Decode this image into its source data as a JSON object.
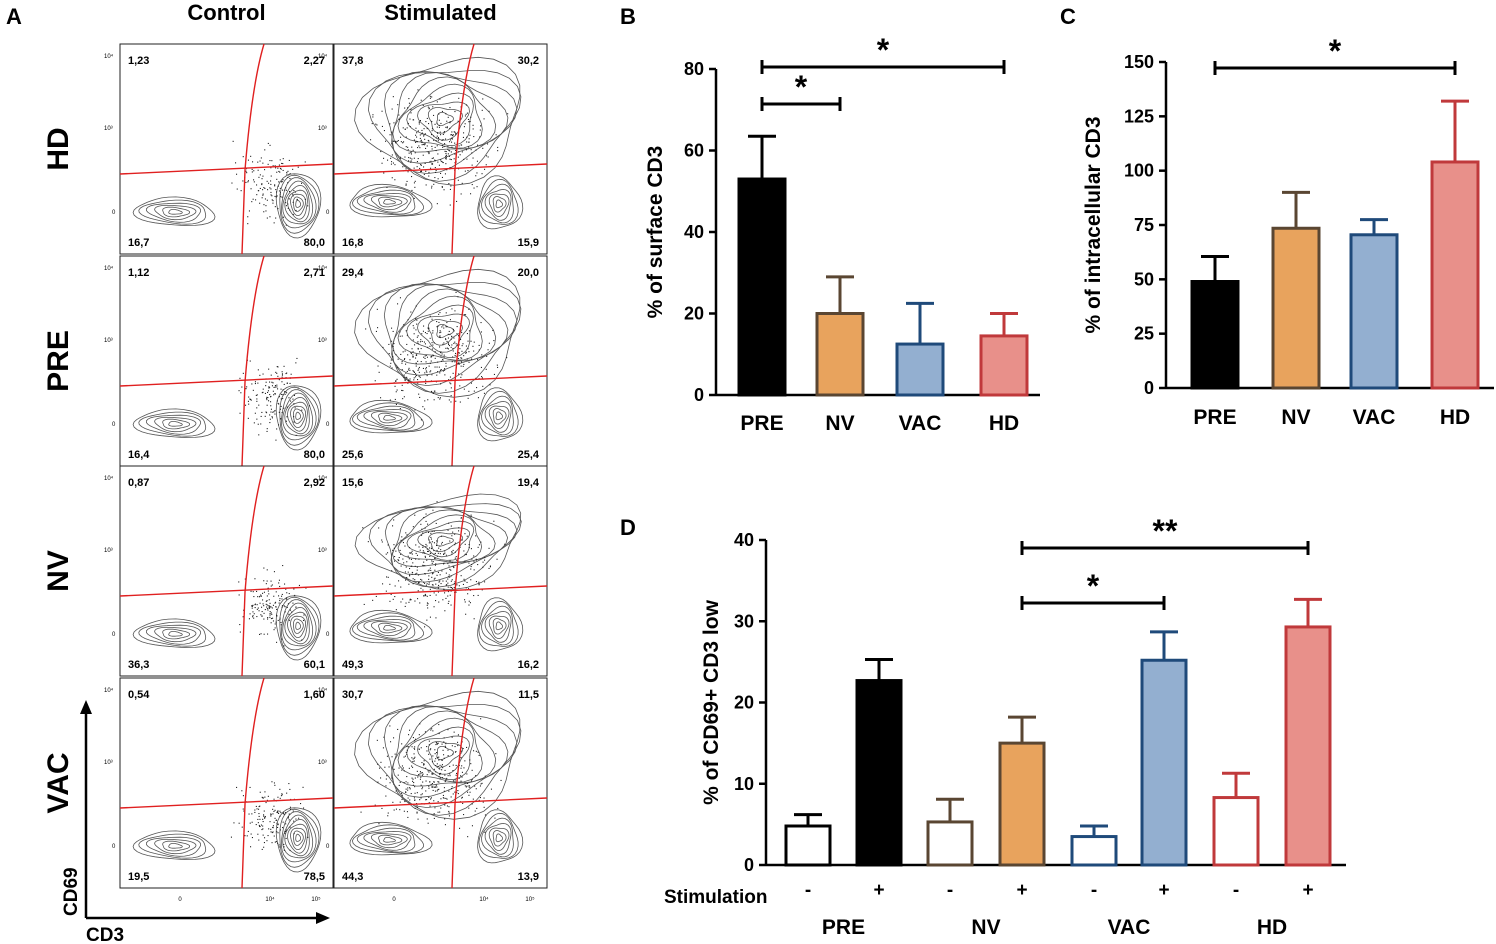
{
  "panels": {
    "A": "A",
    "B": "B",
    "C": "C",
    "D": "D"
  },
  "flow": {
    "columns": [
      "Control",
      "Stimulated"
    ],
    "rows": [
      {
        "label": "HD",
        "control": {
          "ul": "1,23",
          "ur": "2,27",
          "ll": "16,7",
          "lr": "80,0"
        },
        "stimulated": {
          "ul": "37,8",
          "ur": "30,2",
          "ll": "16,8",
          "lr": "15,9"
        }
      },
      {
        "label": "PRE",
        "control": {
          "ul": "1,12",
          "ur": "2,71",
          "ll": "16,4",
          "lr": "80,0"
        },
        "stimulated": {
          "ul": "29,4",
          "ur": "20,0",
          "ll": "25,6",
          "lr": "25,4"
        }
      },
      {
        "label": "NV",
        "control": {
          "ul": "0,87",
          "ur": "2,92",
          "ll": "36,3",
          "lr": "60,1"
        },
        "stimulated": {
          "ul": "15,6",
          "ur": "19,4",
          "ll": "49,3",
          "lr": "16,2"
        }
      },
      {
        "label": "VAC",
        "control": {
          "ul": "0,54",
          "ur": "1,60",
          "ll": "19,5",
          "lr": "78,5"
        },
        "stimulated": {
          "ul": "30,7",
          "ur": "11,5",
          "ll": "44,3",
          "lr": "13,9"
        }
      }
    ],
    "y_axis_label": "CD69",
    "x_axis_label": "CD3",
    "y_ticks": [
      "10⁴",
      "10³",
      "0"
    ],
    "x_ticks": [
      "0",
      "10⁴",
      "10⁵"
    ]
  },
  "colors": {
    "PRE": "#000000",
    "NV": "#e8a35d",
    "NV_edge": "#5a4632",
    "VAC": "#93afd0",
    "VAC_edge": "#1f4a7a",
    "HD": "#e8908a",
    "HD_edge": "#c0393b",
    "gate": "#e02020"
  },
  "chart_data": [
    {
      "id": "B",
      "type": "bar",
      "categories": [
        "PRE",
        "NV",
        "VAC",
        "HD"
      ],
      "values": [
        53,
        20,
        12.5,
        14.5
      ],
      "errors": [
        10.5,
        9,
        10,
        5.5
      ],
      "ylabel": "% of surface CD3",
      "ylim": [
        0,
        80
      ],
      "yticks": [
        0,
        20,
        40,
        60,
        80
      ],
      "significance": [
        {
          "from": 0,
          "to": 1,
          "label": "*"
        },
        {
          "from": 0,
          "to": 3,
          "label": "*"
        }
      ]
    },
    {
      "id": "C",
      "type": "bar",
      "categories": [
        "PRE",
        "NV",
        "VAC",
        "HD"
      ],
      "values": [
        49,
        73.5,
        70.5,
        104
      ],
      "errors": [
        11.5,
        16.5,
        7,
        28
      ],
      "ylabel": "% of intracellular CD3",
      "ylim": [
        0,
        150
      ],
      "yticks": [
        0,
        25,
        50,
        75,
        100,
        125,
        150
      ],
      "significance": [
        {
          "from": 0,
          "to": 3,
          "label": "*"
        }
      ]
    },
    {
      "id": "D",
      "type": "bar",
      "groups": [
        "PRE",
        "NV",
        "VAC",
        "HD"
      ],
      "stimulation_label": "Stimulation",
      "stimulation_marks": [
        "-",
        "+"
      ],
      "series": [
        {
          "name": "Stimulation -",
          "values": [
            4.8,
            5.3,
            3.5,
            8.3
          ],
          "errors": [
            1.4,
            2.8,
            1.3,
            3.0
          ]
        },
        {
          "name": "Stimulation +",
          "values": [
            22.7,
            15.0,
            25.2,
            29.3
          ],
          "errors": [
            2.6,
            3.2,
            3.5,
            3.4
          ]
        }
      ],
      "ylabel": "% of CD69+ CD3 low",
      "ylim": [
        0,
        40
      ],
      "yticks": [
        0,
        10,
        20,
        30,
        40
      ],
      "significance": [
        {
          "from": "NV+",
          "to": "VAC+",
          "label": "*"
        },
        {
          "from": "NV+",
          "to": "HD+",
          "label": "**"
        }
      ]
    }
  ]
}
